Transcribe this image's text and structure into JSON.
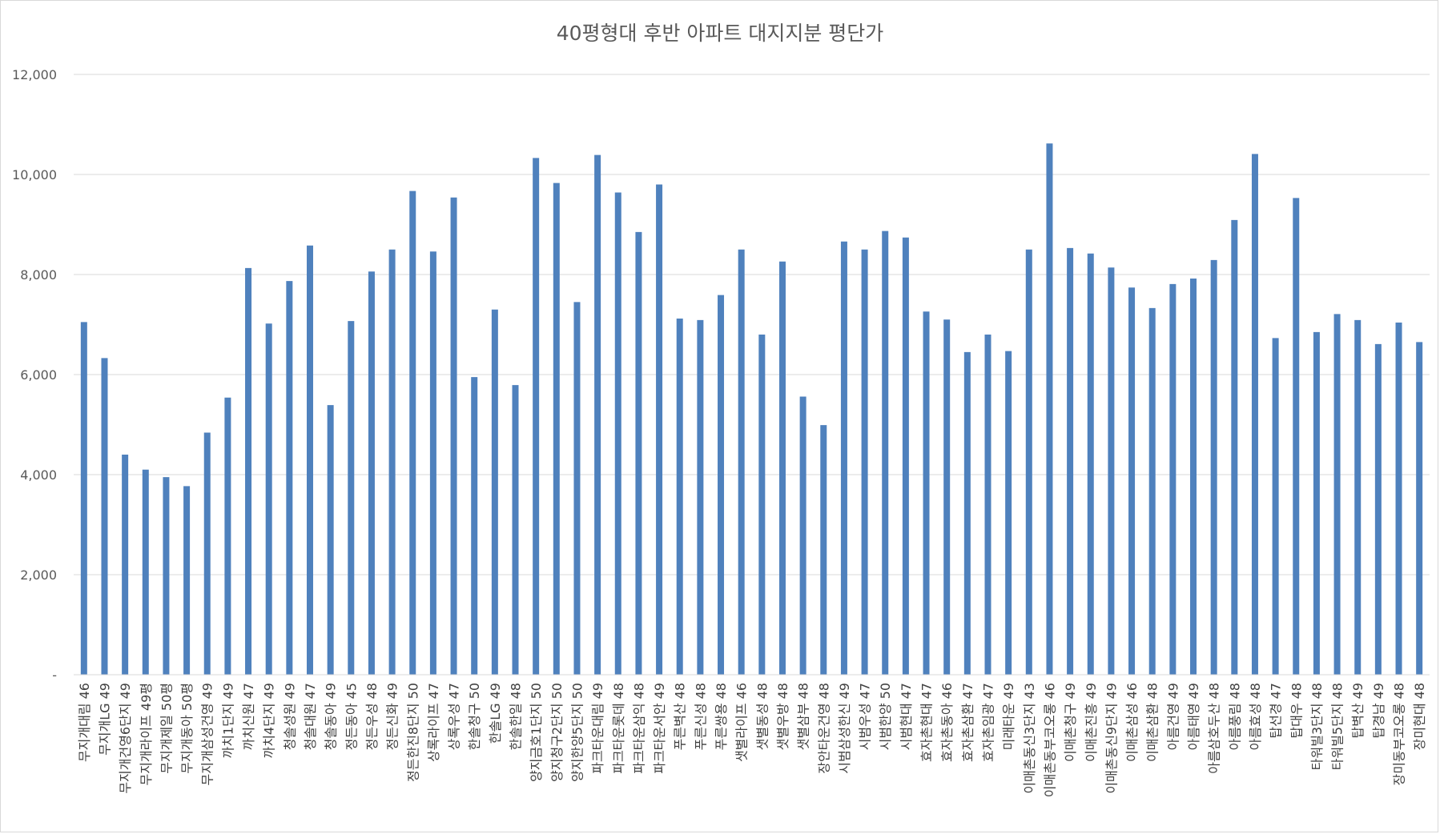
{
  "chart_data": {
    "type": "bar",
    "title": "40평형대 후반 아파트 대지지분 평단가",
    "xlabel": "",
    "ylabel": "",
    "ylim": [
      0,
      12000
    ],
    "yticks": [
      0,
      2000,
      4000,
      6000,
      8000,
      10000,
      12000
    ],
    "ytick_labels": [
      "-",
      "2,000",
      "4,000",
      "6,000",
      "8,000",
      "10,000",
      "12,000"
    ],
    "grid": true,
    "legend": "none",
    "bar_color": "#4f81bd",
    "categories": [
      "무지개대림 46",
      "무지개LG 49",
      "무지개건영6단지 49",
      "무지개라이프 49평",
      "무지개제일 50평",
      "무지개동아 50평",
      "무지개삼성건영 49",
      "까치1단지 49",
      "까치신원 47",
      "까치4단지 49",
      "청솔성원 49",
      "청솔대원 47",
      "청솔동아 49",
      "정든동아 45",
      "정든우성 48",
      "정든신화 49",
      "정든한진8단지 50",
      "상록라이프 47",
      "상록우성 47",
      "한솔청구 50",
      "한솔LG 49",
      "한솔한일 48",
      "양지금호1단지 50",
      "양지청구2단지 50",
      "양지한양5단지 50",
      "파크타운대림 49",
      "파크타운롯데 48",
      "파크타운삼익 48",
      "파크타운서안 49",
      "푸른벽산 48",
      "푸른신성 48",
      "푸른쌍용 48",
      "샛별라이프 46",
      "샛별동성 48",
      "샛별우방 48",
      "샛별삼부 48",
      "장안타운건영 48",
      "시범삼성한신 49",
      "시범우성 47",
      "시범한양 50",
      "시범현대 47",
      "효자촌현대 47",
      "효자촌동아 46",
      "효자촌삼환 47",
      "효자촌임광 47",
      "미래타운 49",
      "이매촌동신3단지 43",
      "이매촌동부코오롱 46",
      "이매촌청구 49",
      "이매촌진흥 49",
      "이매촌동신9단지 49",
      "이매촌삼성 46",
      "이매촌삼환 48",
      "아름건영 49",
      "아름태영 49",
      "아름삼호두산 48",
      "아름풍림 48",
      "아름효성 48",
      "탑선경 47",
      "탑대우 48",
      "타워빌3단지 48",
      "타워빌5단지 48",
      "탑벽산 49",
      "탑경남 49",
      "장미동부코오롱 48",
      "장미현대 48"
    ],
    "values": [
      7050,
      6330,
      4400,
      4100,
      3950,
      3770,
      4840,
      5540,
      8130,
      7020,
      7870,
      8580,
      5390,
      7070,
      8060,
      8500,
      9670,
      8460,
      9540,
      5950,
      7300,
      5790,
      10330,
      9830,
      7450,
      10390,
      9640,
      8850,
      9800,
      7120,
      7090,
      7590,
      8500,
      6800,
      8260,
      5560,
      4990,
      8660,
      8500,
      8870,
      8740,
      7260,
      7100,
      6450,
      6800,
      6470,
      8500,
      10620,
      8530,
      8420,
      8140,
      7740,
      7330,
      7810,
      7920,
      8290,
      9090,
      10410,
      6730,
      9530,
      6850,
      7210,
      7090,
      6610,
      7040,
      6650
    ]
  }
}
